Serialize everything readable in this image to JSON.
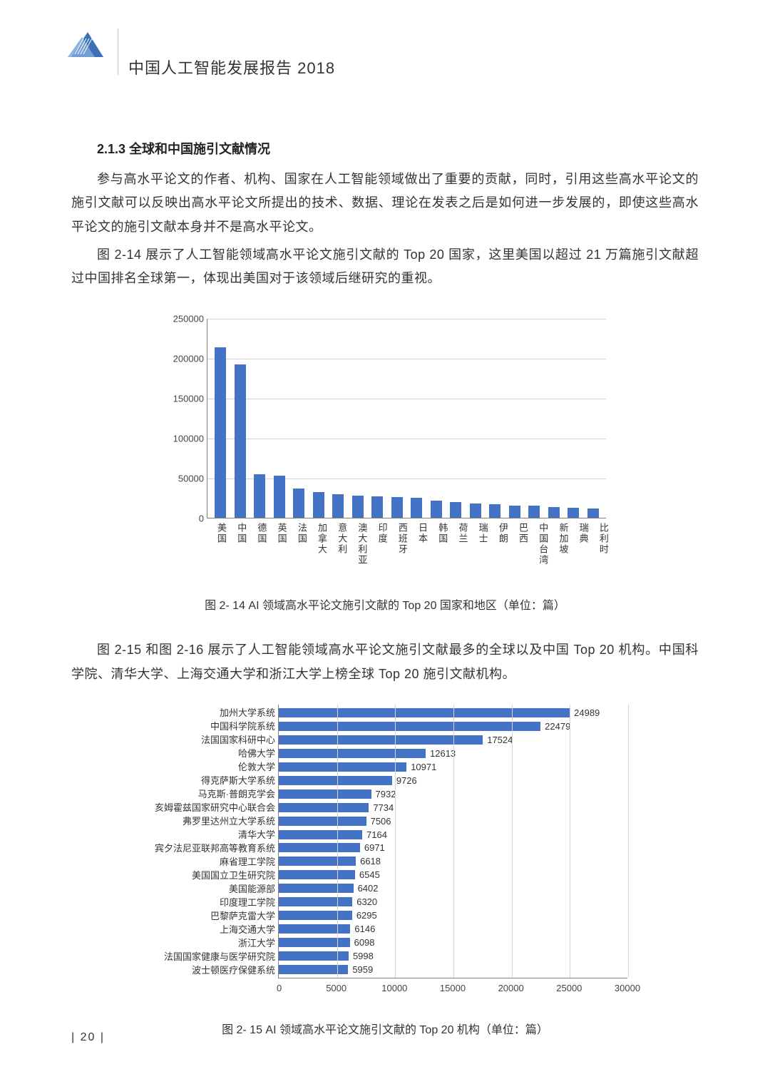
{
  "header": {
    "title": "中国人工智能发展报告 2018"
  },
  "section": {
    "number": "2.1.3",
    "title": "全球和中国施引文献情况"
  },
  "paragraphs": {
    "p1": "参与高水平论文的作者、机构、国家在人工智能领域做出了重要的贡献，同时，引用这些高水平论文的施引文献可以反映出高水平论文所提出的技术、数据、理论在发表之后是如何进一步发展的，即使这些高水平论文的施引文献本身并不是高水平论文。",
    "p2": "图 2-14 展示了人工智能领域高水平论文施引文献的 Top 20 国家，这里美国以超过 21 万篇施引文献超过中国排名全球第一，体现出美国对于该领域后继研究的重视。",
    "p3": "图 2-15 和图 2-16 展示了人工智能领域高水平论文施引文献最多的全球以及中国 Top 20 机构。中国科学院、清华大学、上海交通大学和浙江大学上榜全球 Top 20 施引文献机构。"
  },
  "chart1": {
    "type": "bar",
    "caption": "图 2- 14  AI 领域高水平论文施引文献的 Top 20 国家和地区（单位：篇）",
    "bar_color": "#4472c4",
    "grid_color": "#d5d5d5",
    "axis_color": "#808080",
    "ymin": 0,
    "ymax": 250000,
    "ystep": 50000,
    "yticks": [
      "0",
      "50000",
      "100000",
      "150000",
      "200000",
      "250000"
    ],
    "categories": [
      "美国",
      "中国",
      "德国",
      "英国",
      "法国",
      "加拿大",
      "意大利",
      "澳大利亚",
      "印度",
      "西班牙",
      "日本",
      "韩国",
      "荷兰",
      "瑞士",
      "伊朗",
      "巴西",
      "中国台湾",
      "新加坡",
      "瑞典",
      "比利时"
    ],
    "values": [
      214000,
      192000,
      55000,
      53000,
      37000,
      33000,
      30000,
      28000,
      27000,
      26000,
      25000,
      22000,
      20000,
      18000,
      17000,
      16000,
      16000,
      14000,
      13000,
      12000
    ]
  },
  "chart2": {
    "type": "hbar",
    "caption": "图 2- 15  AI 领域高水平论文施引文献的 Top 20 机构（单位：篇）",
    "bar_color": "#4472c4",
    "grid_color": "#d5d5d5",
    "axis_color": "#808080",
    "xmin": 0,
    "xmax": 30000,
    "xstep": 5000,
    "xticks": [
      "0",
      "5000",
      "10000",
      "15000",
      "20000",
      "25000",
      "30000"
    ],
    "labels": [
      "加州大学系统",
      "中国科学院系统",
      "法国国家科研中心",
      "哈佛大学",
      "伦敦大学",
      "得克萨斯大学系统",
      "马克斯·普朗克学会",
      "亥姆霍兹国家研究中心联合会",
      "弗罗里达州立大学系统",
      "清华大学",
      "宾夕法尼亚联邦高等教育系统",
      "麻省理工学院",
      "美国国立卫生研究院",
      "美国能源部",
      "印度理工学院",
      "巴黎萨克雷大学",
      "上海交通大学",
      "浙江大学",
      "法国国家健康与医学研究院",
      "波士顿医疗保健系统"
    ],
    "values": [
      24989,
      22479,
      17524,
      12613,
      10971,
      9726,
      7932,
      7734,
      7506,
      7164,
      6971,
      6618,
      6545,
      6402,
      6320,
      6295,
      6146,
      6098,
      5998,
      5959
    ]
  },
  "page_number": "| 20 |"
}
